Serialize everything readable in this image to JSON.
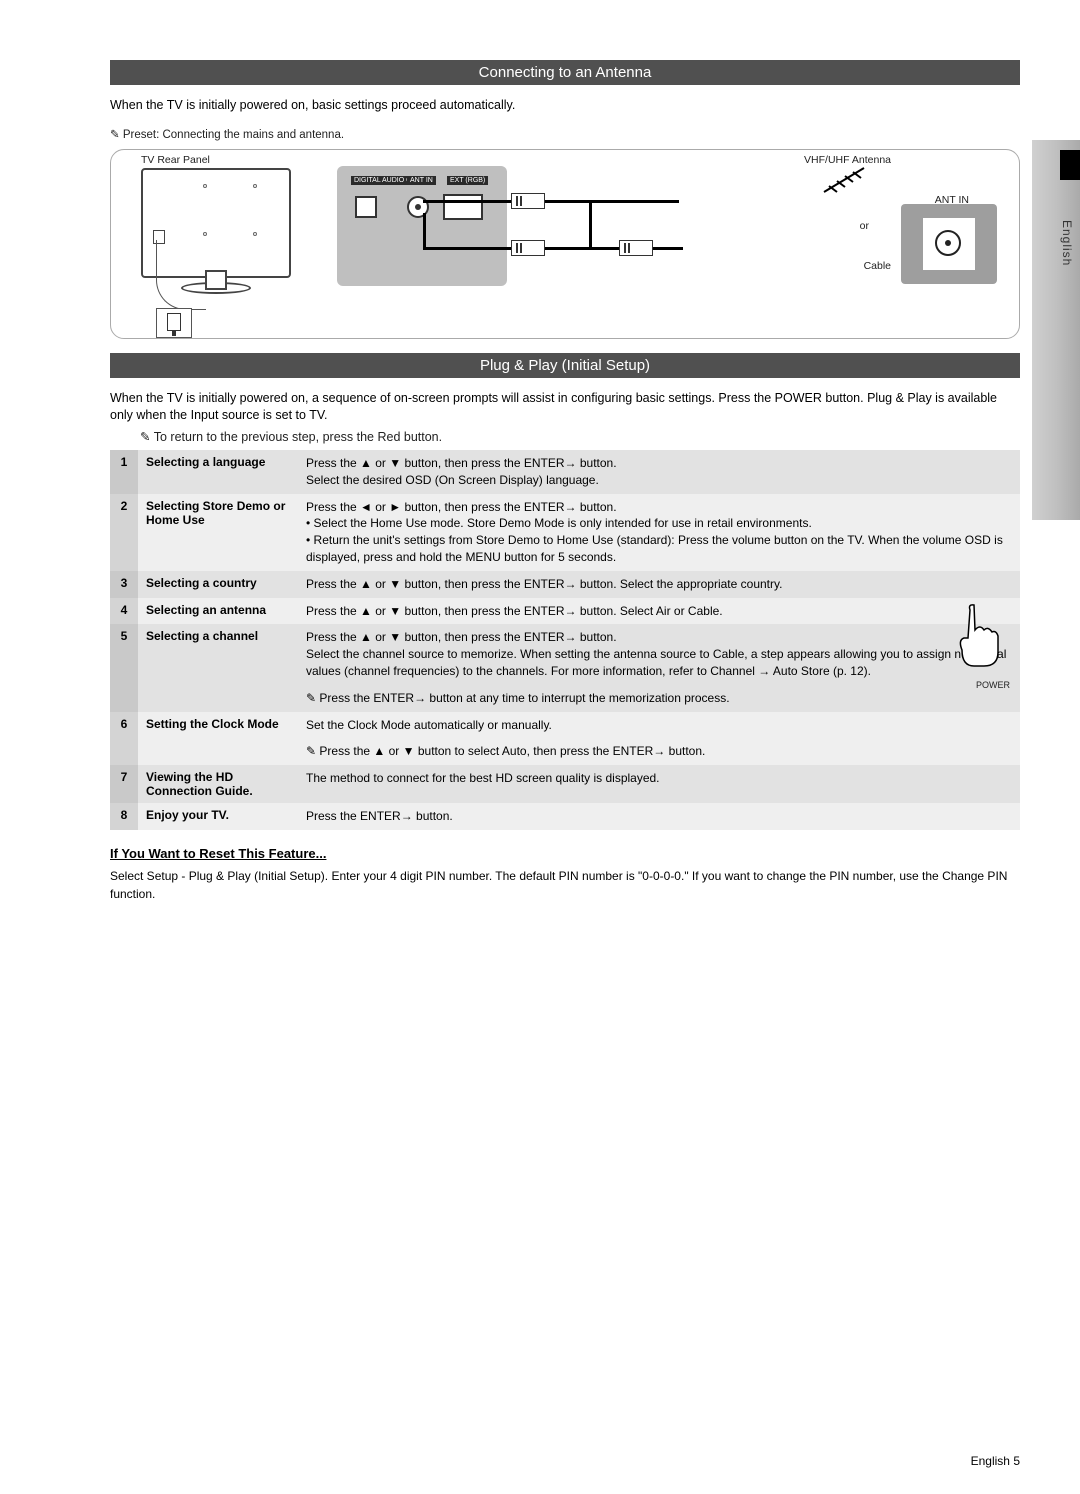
{
  "sideLabel": "English",
  "section1": {
    "title": "Connecting to an Antenna",
    "intro": "When the TV is initially powered on, basic settings proceed automatically.",
    "note": "Preset: Connecting the mains and antenna.",
    "captions": {
      "tvRear": "TV Rear Panel",
      "vhfuhf": "VHF/UHF Antenna",
      "or": "or",
      "cable": "Cable",
      "antIn": "ANT IN",
      "ports": {
        "audio": "DIGITAL AUDIO OUT",
        "ant": "ANT IN",
        "ext": "EXT (RGB)"
      }
    }
  },
  "section2": {
    "title": "Plug & Play (Initial Setup)",
    "intro": "When the TV is initially powered on, a sequence of on-screen prompts will assist in configuring basic settings. Press the POWER button. Plug & Play is available only when the Input source is set to TV.",
    "note": "To return to the previous step, press the Red button.",
    "rows": [
      {
        "n": "1",
        "name": "Selecting a language",
        "desc": "Press the ▲ or ▼ button, then press the ENTER→ button.\nSelect the desired OSD (On Screen Display) language."
      },
      {
        "n": "2",
        "name": "Selecting Store Demo or Home Use",
        "desc": "Press the ◄ or ► button, then press the ENTER→ button.\n• Select the Home Use mode. Store Demo Mode is only intended for use in retail environments.\n• Return the unit's settings from Store Demo to Home Use (standard): Press the volume button on the TV. When the volume OSD is displayed, press and hold the MENU button for 5 seconds."
      },
      {
        "n": "3",
        "name": "Selecting a country",
        "desc": "Press the ▲ or ▼ button, then press the ENTER→ button. Select the appropriate country."
      },
      {
        "n": "4",
        "name": "Selecting an antenna",
        "desc": "Press the ▲ or ▼ button, then press the ENTER→ button. Select Air or Cable."
      },
      {
        "n": "5",
        "name": "Selecting a channel",
        "desc": "Press the ▲ or ▼ button, then press the ENTER→ button.\nSelect the channel source to memorize. When setting the antenna source to Cable, a step appears allowing you to assign numerical values (channel frequencies) to the channels. For more information, refer to Channel → Auto Store (p. 12)."
      },
      {
        "n": "",
        "name": "",
        "desc": "Press the ENTER→ button at any time to interrupt the memorization process.",
        "noteRow": true
      },
      {
        "n": "6",
        "name": "Setting the Clock Mode",
        "desc": "Set the Clock Mode automatically or manually."
      },
      {
        "n": "",
        "name": "",
        "desc": "Press the ▲ or ▼ button to select Auto, then press the ENTER→ button.",
        "noteRow": true
      },
      {
        "n": "7",
        "name": "Viewing the HD Connection Guide.",
        "desc": "The method to connect for the best HD screen quality is displayed."
      },
      {
        "n": "8",
        "name": "Enjoy your TV.",
        "desc": "Press the ENTER→ button."
      }
    ],
    "touchLabel": "POWER",
    "reset": {
      "title": "If You Want to Reset This Feature...",
      "body": "Select Setup - Plug & Play (Initial Setup). Enter your 4 digit PIN number. The default PIN number is \"0-0-0-0.\" If you want to change the PIN number, use the Change PIN function."
    }
  },
  "pageNumber": "English 5"
}
